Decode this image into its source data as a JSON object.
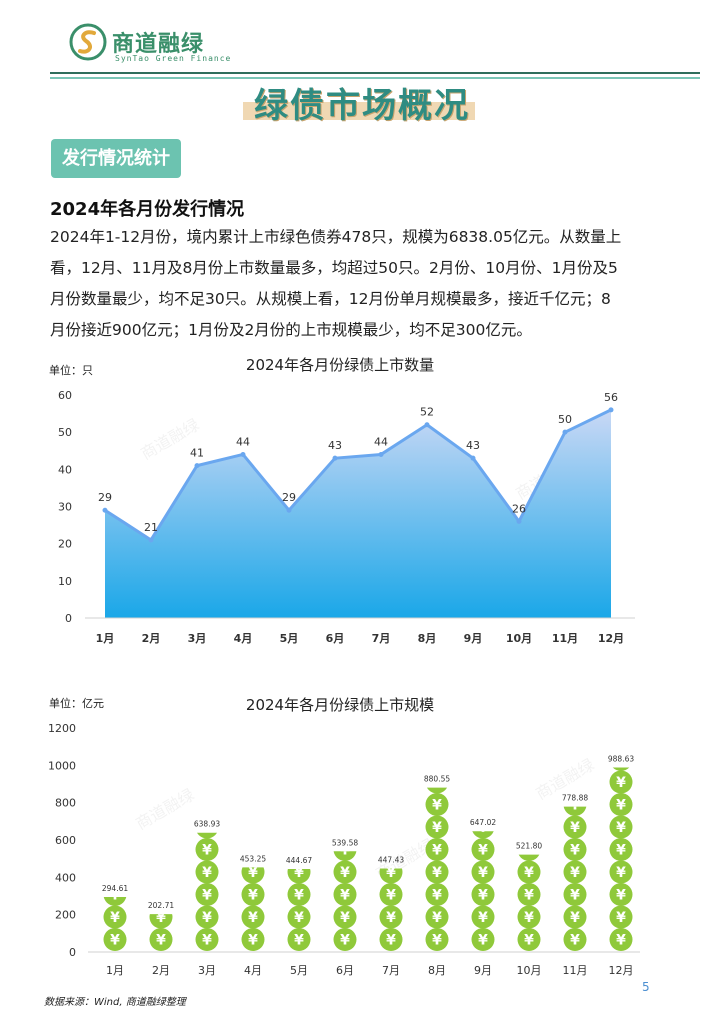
{
  "header": {
    "logo_cn": "商道融绿",
    "logo_en": "SynTao Green Finance"
  },
  "page_title": "绿债市场概况",
  "section_tag": "发行情况统计",
  "subsection_title": "2024年各月份发行情况",
  "paragraph_lines": [
    "2024年1-12月份，境内累计上市绿色债券478只，规模为6838.05亿元。从数量上",
    "看，12月、11月及8月份上市数量最多，均超过50只。2月份、10月份、1月份及5",
    "月份数量最少，均不足30只。从规模上看，12月份单月规模最多，接近千亿元；8",
    "月份接近900亿元；1月份及2月份的上市规模最少，均不足300亿元。"
  ],
  "watermark": "商道融绿",
  "chart_data": [
    {
      "type": "area",
      "title": "2024年各月份绿债上市数量",
      "unit_label": "单位：只",
      "categories": [
        "1月",
        "2月",
        "3月",
        "4月",
        "5月",
        "6月",
        "7月",
        "8月",
        "9月",
        "10月",
        "11月",
        "12月"
      ],
      "values": [
        29,
        21,
        41,
        44,
        29,
        43,
        44,
        52,
        43,
        26,
        50,
        56
      ],
      "ylim": [
        0,
        60
      ],
      "yticks": [
        0,
        10,
        20,
        30,
        40,
        50,
        60
      ],
      "grid": false,
      "colors": {
        "line": "#6aa7ef",
        "fill_top": "#c9d8f5",
        "fill_bottom": "#1aa7e8"
      }
    },
    {
      "type": "bar",
      "title": "2024年各月份绿债上市规模",
      "unit_label": "单位：亿元",
      "categories": [
        "1月",
        "2月",
        "3月",
        "4月",
        "5月",
        "6月",
        "7月",
        "8月",
        "9月",
        "10月",
        "11月",
        "12月"
      ],
      "values": [
        294.61,
        202.71,
        638.93,
        453.25,
        444.67,
        539.58,
        447.43,
        880.55,
        647.02,
        521.8,
        778.88,
        988.63
      ],
      "value_labels": [
        "294.61",
        "202.71",
        "638.93",
        "453.25",
        "444.67",
        "539.58",
        "447.43",
        "880.55",
        "647.02",
        "521.80",
        "778.88",
        "988.63"
      ],
      "ylim": [
        0,
        1200
      ],
      "yticks": [
        0,
        200,
        400,
        600,
        800,
        1000,
        1200
      ],
      "grid": false,
      "bar_symbol": "¥",
      "colors": {
        "coin": "#8fc93a"
      }
    }
  ],
  "source_note": "数据来源：Wind, 商道融绿整理",
  "page_number": "5"
}
